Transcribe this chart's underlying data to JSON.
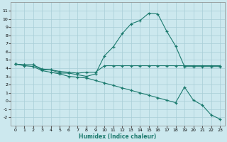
{
  "xlabel": "Humidex (Indice chaleur)",
  "x": [
    0,
    1,
    2,
    3,
    4,
    5,
    6,
    7,
    8,
    9,
    10,
    11,
    12,
    13,
    14,
    15,
    16,
    17,
    18,
    19,
    20,
    21,
    22,
    23
  ],
  "line_peak": [
    4.5,
    4.4,
    4.4,
    3.8,
    3.8,
    3.4,
    3.4,
    3.2,
    3.0,
    3.3,
    5.5,
    6.6,
    8.2,
    9.4,
    9.8,
    10.7,
    10.6,
    8.5,
    6.7,
    4.2,
    4.2,
    4.2,
    4.2,
    4.2
  ],
  "line_flat": [
    4.5,
    4.4,
    4.4,
    3.9,
    3.8,
    3.6,
    3.5,
    3.4,
    3.5,
    3.5,
    4.3,
    4.3,
    4.3,
    4.3,
    4.3,
    4.3,
    4.3,
    4.3,
    4.3,
    4.3,
    4.3,
    4.3,
    4.3,
    4.3
  ],
  "line_decline": [
    4.5,
    4.3,
    4.2,
    3.7,
    3.5,
    3.3,
    3.0,
    2.9,
    2.8,
    2.5,
    2.2,
    1.9,
    1.6,
    1.3,
    1.0,
    0.7,
    0.4,
    0.1,
    -0.2,
    1.7,
    0.1,
    -0.5,
    -1.7,
    -2.2
  ],
  "color": "#1b7a6e",
  "bg_color": "#cce8ee",
  "grid_color": "#a8cdd6",
  "ylim": [
    -3,
    12
  ],
  "yticks": [
    -2,
    -1,
    0,
    1,
    2,
    3,
    4,
    5,
    6,
    7,
    8,
    9,
    10,
    11
  ],
  "xlim": [
    -0.5,
    23.5
  ],
  "xticks": [
    0,
    1,
    2,
    3,
    4,
    5,
    6,
    7,
    8,
    9,
    10,
    11,
    12,
    13,
    14,
    15,
    16,
    17,
    18,
    19,
    20,
    21,
    22,
    23
  ]
}
